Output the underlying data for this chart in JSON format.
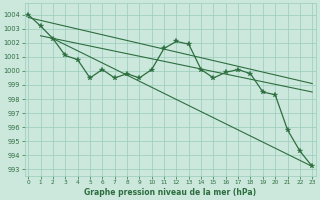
{
  "xlabel": "Graphe pression niveau de la mer (hPa)",
  "background_color": "#cce8dd",
  "grid_color": "#99ccbb",
  "line_color": "#2d6e3e",
  "xlim": [
    -0.3,
    23.3
  ],
  "ylim": [
    992.5,
    1004.8
  ],
  "yticks": [
    993,
    994,
    995,
    996,
    997,
    998,
    999,
    1000,
    1001,
    1002,
    1003,
    1004
  ],
  "xticks": [
    0,
    1,
    2,
    3,
    4,
    5,
    6,
    7,
    8,
    9,
    10,
    11,
    12,
    13,
    14,
    15,
    16,
    17,
    18,
    19,
    20,
    21,
    22,
    23
  ],
  "hours": [
    0,
    1,
    2,
    3,
    4,
    5,
    6,
    7,
    8,
    9,
    10,
    11,
    12,
    13,
    14,
    15,
    16,
    17,
    18,
    19,
    20,
    21,
    22,
    23
  ],
  "pressure": [
    1004.0,
    1003.2,
    1002.3,
    1001.1,
    1000.8,
    999.5,
    1000.1,
    999.5,
    999.8,
    999.5,
    1000.1,
    1001.6,
    1002.1,
    1001.9,
    1000.1,
    999.5,
    999.9,
    1000.1,
    999.8,
    998.5,
    998.3,
    995.8,
    994.3,
    993.2
  ],
  "trend1_x": [
    0,
    23
  ],
  "trend1_y": [
    1003.8,
    999.1
  ],
  "trend2_x": [
    1,
    23
  ],
  "trend2_y": [
    1002.5,
    998.5
  ],
  "trend3_x": [
    2,
    23
  ],
  "trend3_y": [
    1002.3,
    993.2
  ]
}
